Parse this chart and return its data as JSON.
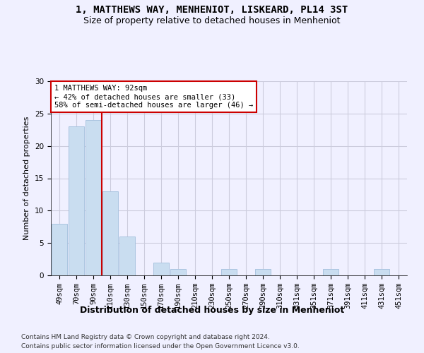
{
  "title": "1, MATTHEWS WAY, MENHENIOT, LISKEARD, PL14 3ST",
  "subtitle": "Size of property relative to detached houses in Menheniot",
  "xlabel": "Distribution of detached houses by size in Menheniot",
  "ylabel": "Number of detached properties",
  "categories": [
    "49sqm",
    "70sqm",
    "90sqm",
    "110sqm",
    "130sqm",
    "150sqm",
    "170sqm",
    "190sqm",
    "210sqm",
    "230sqm",
    "250sqm",
    "270sqm",
    "290sqm",
    "310sqm",
    "331sqm",
    "351sqm",
    "371sqm",
    "391sqm",
    "411sqm",
    "431sqm",
    "451sqm"
  ],
  "values": [
    8,
    23,
    24,
    13,
    6,
    0,
    2,
    1,
    0,
    0,
    1,
    0,
    1,
    0,
    0,
    0,
    1,
    0,
    0,
    1,
    0
  ],
  "bar_color": "#c9ddf0",
  "bar_edge_color": "#aac4e0",
  "vline_x": 2.5,
  "vline_color": "#cc0000",
  "annotation_text": "1 MATTHEWS WAY: 92sqm\n← 42% of detached houses are smaller (33)\n58% of semi-detached houses are larger (46) →",
  "annotation_box_color": "#ffffff",
  "annotation_box_edge": "#cc0000",
  "ylim": [
    0,
    30
  ],
  "yticks": [
    0,
    5,
    10,
    15,
    20,
    25,
    30
  ],
  "footer1": "Contains HM Land Registry data © Crown copyright and database right 2024.",
  "footer2": "Contains public sector information licensed under the Open Government Licence v3.0.",
  "bg_color": "#f0f0ff",
  "grid_color": "#ccccdd",
  "title_fontsize": 10,
  "subtitle_fontsize": 9,
  "xlabel_fontsize": 9,
  "ylabel_fontsize": 8,
  "tick_fontsize": 7.5,
  "footer_fontsize": 6.5,
  "ann_fontsize": 7.5
}
